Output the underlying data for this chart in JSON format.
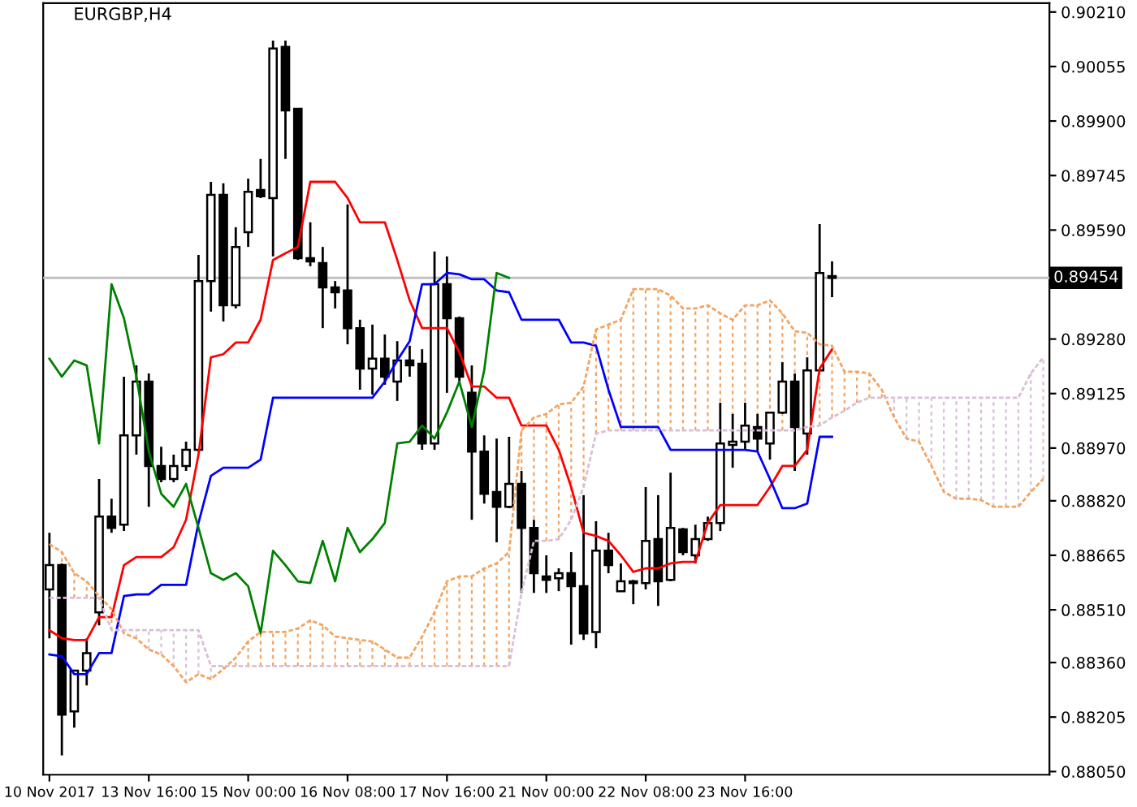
{
  "chart_data": {
    "type": "candlestick",
    "title": "EURGBP,H4",
    "categories": [
      "10 Nov 2017",
      null,
      null,
      null,
      null,
      null,
      null,
      null,
      "13 Nov 16:00",
      null,
      null,
      null,
      null,
      null,
      null,
      null,
      "15 Nov 00:00",
      null,
      null,
      null,
      null,
      null,
      null,
      null,
      "16 Nov 08:00",
      null,
      null,
      null,
      null,
      null,
      null,
      null,
      "17 Nov 16:00",
      null,
      null,
      null,
      null,
      null,
      null,
      null,
      "21 Nov 00:00",
      null,
      null,
      null,
      null,
      null,
      null,
      null,
      "22 Nov 08:00",
      null,
      null,
      null,
      null,
      null,
      null,
      null,
      "23 Nov 16:00",
      null,
      null,
      null,
      null,
      null,
      null,
      null,
      null,
      null,
      null,
      null,
      null,
      null,
      null,
      null,
      null,
      null,
      null,
      null,
      null,
      null,
      null,
      null,
      null
    ],
    "ohlc": [
      [
        0.88568,
        0.88729,
        0.88429,
        0.88637
      ],
      [
        0.88637,
        0.88642,
        0.88096,
        0.88212
      ],
      [
        0.88221,
        0.88337,
        0.88175,
        0.88337
      ],
      [
        0.88337,
        0.88429,
        0.88295,
        0.88387
      ],
      [
        0.88503,
        0.88882,
        0.88466,
        0.88775
      ],
      [
        0.88775,
        0.88826,
        0.88729,
        0.88743
      ],
      [
        0.88752,
        0.89173,
        0.88734,
        0.89006
      ],
      [
        0.89006,
        0.89205,
        0.88951,
        0.89159
      ],
      [
        0.89159,
        0.89182,
        0.88803,
        0.88919
      ],
      [
        0.88919,
        0.88974,
        0.88873,
        0.88882
      ],
      [
        0.88882,
        0.88951,
        0.88873,
        0.88919
      ],
      [
        0.88919,
        0.88988,
        0.88905,
        0.88965
      ],
      [
        0.88965,
        0.89519,
        0.8896,
        0.89445
      ],
      [
        0.89445,
        0.89727,
        0.89358,
        0.8969
      ],
      [
        0.8969,
        0.89723,
        0.8933,
        0.89376
      ],
      [
        0.89376,
        0.89598,
        0.89367,
        0.89542
      ],
      [
        0.89584,
        0.89736,
        0.89542,
        0.89699
      ],
      [
        0.89704,
        0.89792,
        0.89681,
        0.89686
      ],
      [
        0.89681,
        0.90129,
        0.89515,
        0.90106
      ],
      [
        0.90111,
        0.90129,
        0.89792,
        0.8993
      ],
      [
        0.89935,
        0.89935,
        0.89505,
        0.8951
      ],
      [
        0.8951,
        0.89612,
        0.89487,
        0.89501
      ],
      [
        0.89496,
        0.89542,
        0.89311,
        0.89427
      ],
      [
        0.89427,
        0.89445,
        0.89367,
        0.89413
      ],
      [
        0.89418,
        0.89663,
        0.89265,
        0.89311
      ],
      [
        0.89311,
        0.89335,
        0.89136,
        0.89196
      ],
      [
        0.89196,
        0.89321,
        0.89122,
        0.89224
      ],
      [
        0.89224,
        0.89293,
        0.8915,
        0.89173
      ],
      [
        0.89159,
        0.89274,
        0.89104,
        0.89219
      ],
      [
        0.89219,
        0.89261,
        0.89173,
        0.89205
      ],
      [
        0.8921,
        0.89251,
        0.88965,
        0.88983
      ],
      [
        0.88983,
        0.89529,
        0.88965,
        0.89436
      ],
      [
        0.89436,
        0.89515,
        0.89127,
        0.89339
      ],
      [
        0.89339,
        0.89344,
        0.89159,
        0.89173
      ],
      [
        0.89127,
        0.89205,
        0.88766,
        0.8896
      ],
      [
        0.8896,
        0.89006,
        0.88812,
        0.8884
      ],
      [
        0.88845,
        0.88997,
        0.88702,
        0.88803
      ],
      [
        0.88803,
        0.89002,
        0.88799,
        0.88868
      ],
      [
        0.88868,
        0.88905,
        0.88558,
        0.88743
      ],
      [
        0.88743,
        0.88766,
        0.88558,
        0.88614
      ],
      [
        0.88605,
        0.88665,
        0.88558,
        0.88595
      ],
      [
        0.886,
        0.88628,
        0.88563,
        0.88614
      ],
      [
        0.88614,
        0.88674,
        0.88411,
        0.88577
      ],
      [
        0.88577,
        0.88836,
        0.88424,
        0.88443
      ],
      [
        0.88447,
        0.88762,
        0.88401,
        0.88678
      ],
      [
        0.88678,
        0.88729,
        0.88614,
        0.88637
      ],
      [
        0.88563,
        0.88642,
        0.88563,
        0.88591
      ],
      [
        0.88591,
        0.88595,
        0.88526,
        0.88586
      ],
      [
        0.88586,
        0.88859,
        0.88568,
        0.88706
      ],
      [
        0.88711,
        0.88836,
        0.88521,
        0.88591
      ],
      [
        0.88595,
        0.889,
        0.88591,
        0.88743
      ],
      [
        0.88739,
        0.88743,
        0.88665,
        0.88674
      ],
      [
        0.88665,
        0.88752,
        0.88642,
        0.88711
      ],
      [
        0.88711,
        0.88775,
        0.88706,
        0.88757
      ],
      [
        0.88757,
        0.89099,
        0.88734,
        0.88983
      ],
      [
        0.88979,
        0.89067,
        0.88914,
        0.88988
      ],
      [
        0.88988,
        0.89099,
        0.88965,
        0.89034
      ],
      [
        0.8903,
        0.89067,
        0.8896,
        0.88997
      ],
      [
        0.88983,
        0.89071,
        0.88937,
        0.89071
      ],
      [
        0.89071,
        0.89214,
        0.89067,
        0.89159
      ],
      [
        0.89159,
        0.89182,
        0.88905,
        0.8903
      ],
      [
        0.89011,
        0.89228,
        0.88951,
        0.89191
      ],
      [
        0.89191,
        0.89607,
        0.89191,
        0.89468
      ],
      [
        0.89459,
        0.89501,
        0.89399,
        0.89454
      ],
      null,
      null,
      null,
      null,
      null,
      null,
      null,
      null,
      null,
      null,
      null,
      null,
      null,
      null,
      null,
      null,
      null
    ],
    "series": [
      {
        "type": "line",
        "color": "#ff0000",
        "line_style": "solid",
        "values": [
          0.88452,
          0.88429,
          0.88424,
          0.88424,
          0.88489,
          0.88489,
          0.88637,
          0.8866,
          0.8866,
          0.8866,
          0.88688,
          0.88766,
          0.88951,
          0.89228,
          0.89237,
          0.8927,
          0.8927,
          0.89335,
          0.89505,
          0.89524,
          0.89542,
          0.89727,
          0.89727,
          0.89727,
          0.89681,
          0.89612,
          0.89612,
          0.89612,
          0.89505,
          0.8939,
          0.89311,
          0.89311,
          0.89311,
          0.89242,
          0.89145,
          0.89145,
          0.89113,
          0.89113,
          0.89034,
          0.89034,
          0.89034,
          0.88965,
          0.88859,
          0.88729,
          0.8872,
          0.88706,
          0.88665,
          0.88618,
          0.88628,
          0.88628,
          0.88642,
          0.88646,
          0.88646,
          0.88757,
          0.88808,
          0.88808,
          0.88808,
          0.88808,
          0.88859,
          0.88919,
          0.88919,
          0.88965,
          0.89196,
          0.89251,
          null,
          null,
          null,
          null,
          null,
          null,
          null,
          null,
          null,
          null,
          null,
          null,
          null,
          null,
          null,
          null,
          null
        ]
      },
      {
        "type": "line",
        "color": "#0000ff",
        "line_style": "solid",
        "values": [
          0.88383,
          0.88378,
          0.88327,
          0.88327,
          0.88387,
          0.88387,
          0.88549,
          0.88554,
          0.88554,
          0.88581,
          0.88581,
          0.88581,
          0.88757,
          0.88891,
          0.88914,
          0.88914,
          0.88914,
          0.88937,
          0.89113,
          0.89113,
          0.89113,
          0.89113,
          0.89113,
          0.89113,
          0.89113,
          0.89113,
          0.89113,
          0.89159,
          0.89219,
          0.89274,
          0.89436,
          0.89436,
          0.89468,
          0.89464,
          0.8945,
          0.8945,
          0.89418,
          0.89413,
          0.89335,
          0.89335,
          0.89335,
          0.89335,
          0.8927,
          0.8927,
          0.89261,
          0.89136,
          0.8903,
          0.8903,
          0.8903,
          0.8903,
          0.88965,
          0.88965,
          0.88965,
          0.88965,
          0.88965,
          0.88965,
          0.88965,
          0.8896,
          0.88882,
          0.88799,
          0.88799,
          0.88812,
          0.89002,
          0.89002,
          null,
          null,
          null,
          null,
          null,
          null,
          null,
          null,
          null,
          null,
          null,
          null,
          null,
          null,
          null,
          null,
          null
        ]
      },
      {
        "type": "line",
        "color": "#008000",
        "line_style": "solid",
        "values": [
          0.89224,
          0.89173,
          0.89219,
          0.89205,
          0.88983,
          0.89436,
          0.89339,
          0.89173,
          0.8896,
          0.8884,
          0.88803,
          0.88868,
          0.88743,
          0.88614,
          0.88595,
          0.88614,
          0.88577,
          0.88443,
          0.88678,
          0.88637,
          0.88591,
          0.88586,
          0.88706,
          0.88591,
          0.88743,
          0.88674,
          0.88711,
          0.88757,
          0.88983,
          0.88988,
          0.89034,
          0.88997,
          0.89071,
          0.89159,
          0.8903,
          0.89191,
          0.89468,
          0.89454,
          null,
          null,
          null,
          null,
          null,
          null,
          null,
          null,
          null,
          null,
          null,
          null,
          null,
          null,
          null,
          null,
          null,
          null,
          null,
          null,
          null,
          null,
          null,
          null,
          null,
          null,
          null,
          null,
          null,
          null,
          null,
          null,
          null,
          null,
          null,
          null,
          null,
          null,
          null,
          null,
          null,
          null,
          null
        ]
      },
      {
        "type": "line",
        "color": "#f4a460",
        "line_style": "dashed",
        "values": [
          0.88697,
          0.88674,
          0.88614,
          0.88591,
          0.88549,
          0.88512,
          0.88443,
          0.88429,
          0.88397,
          0.88383,
          0.8835,
          0.88304,
          0.88327,
          0.88313,
          0.88341,
          0.88374,
          0.8842,
          0.88447,
          0.88447,
          0.88447,
          0.88457,
          0.8848,
          0.88466,
          0.88434,
          0.88429,
          0.88424,
          0.8842,
          0.88397,
          0.88374,
          0.88374,
          0.88434,
          0.88503,
          0.88591,
          0.88605,
          0.88605,
          0.88628,
          0.88642,
          0.88674,
          0.8902,
          0.89057,
          0.89067,
          0.89094,
          0.89099,
          0.89145,
          0.89307,
          0.89321,
          0.89335,
          0.89422,
          0.89422,
          0.89422,
          0.89404,
          0.89367,
          0.89367,
          0.89376,
          0.89353,
          0.89335,
          0.89376,
          0.89376,
          0.8939,
          0.89353,
          0.89302,
          0.89298,
          0.89265,
          0.89261,
          0.89187,
          0.89187,
          0.89182,
          0.89136,
          0.89057,
          0.88997,
          0.88988,
          0.88919,
          0.88845,
          0.88826,
          0.88826,
          0.88822,
          0.88803,
          0.88803,
          0.88803,
          0.88845,
          0.88882
        ]
      },
      {
        "type": "line",
        "color": "#d8bfd8",
        "line_style": "dashed",
        "values": [
          0.88544,
          0.88544,
          0.88544,
          0.88544,
          0.88544,
          0.88452,
          0.88452,
          0.88452,
          0.88452,
          0.88452,
          0.88452,
          0.88452,
          0.88452,
          0.8835,
          0.8835,
          0.8835,
          0.8835,
          0.8835,
          0.8835,
          0.8835,
          0.8835,
          0.8835,
          0.8835,
          0.8835,
          0.8835,
          0.8835,
          0.8835,
          0.8835,
          0.8835,
          0.8835,
          0.8835,
          0.8835,
          0.8835,
          0.8835,
          0.8835,
          0.8835,
          0.8835,
          0.8835,
          0.88558,
          0.88706,
          0.88706,
          0.88711,
          0.88766,
          0.88859,
          0.89011,
          0.8902,
          0.8902,
          0.8902,
          0.8902,
          0.8902,
          0.8902,
          0.8902,
          0.8902,
          0.8902,
          0.8902,
          0.8902,
          0.8902,
          0.8902,
          0.8902,
          0.8902,
          0.8902,
          0.8903,
          0.89034,
          0.89057,
          0.89076,
          0.89099,
          0.89113,
          0.89113,
          0.89113,
          0.89113,
          0.89113,
          0.89113,
          0.89113,
          0.89113,
          0.89113,
          0.89113,
          0.89113,
          0.89113,
          0.89113,
          0.89182,
          0.89228
        ]
      }
    ],
    "ylim": [
      0.88041,
      0.90235
    ],
    "yticks": [
      {
        "value": 0.9021,
        "label": "0.90210"
      },
      {
        "value": 0.90055,
        "label": "0.90055"
      },
      {
        "value": 0.899,
        "label": "0.89900"
      },
      {
        "value": 0.89745,
        "label": "0.89745"
      },
      {
        "value": 0.8959,
        "label": "0.89590"
      },
      {
        "value": 0.8928,
        "label": "0.89280"
      },
      {
        "value": 0.89125,
        "label": "0.89125"
      },
      {
        "value": 0.8897,
        "label": "0.88970"
      },
      {
        "value": 0.8882,
        "label": "0.88820"
      },
      {
        "value": 0.88665,
        "label": "0.88665"
      },
      {
        "value": 0.8851,
        "label": "0.88510"
      },
      {
        "value": 0.8836,
        "label": "0.88360"
      },
      {
        "value": 0.88205,
        "label": "0.88205"
      },
      {
        "value": 0.8805,
        "label": "0.88050"
      }
    ],
    "ref_lines": [
      {
        "axis": "y",
        "value": 0.89454,
        "label": "0.89454",
        "color": "#c0c0c0"
      }
    ],
    "grid": false,
    "legend": false
  }
}
